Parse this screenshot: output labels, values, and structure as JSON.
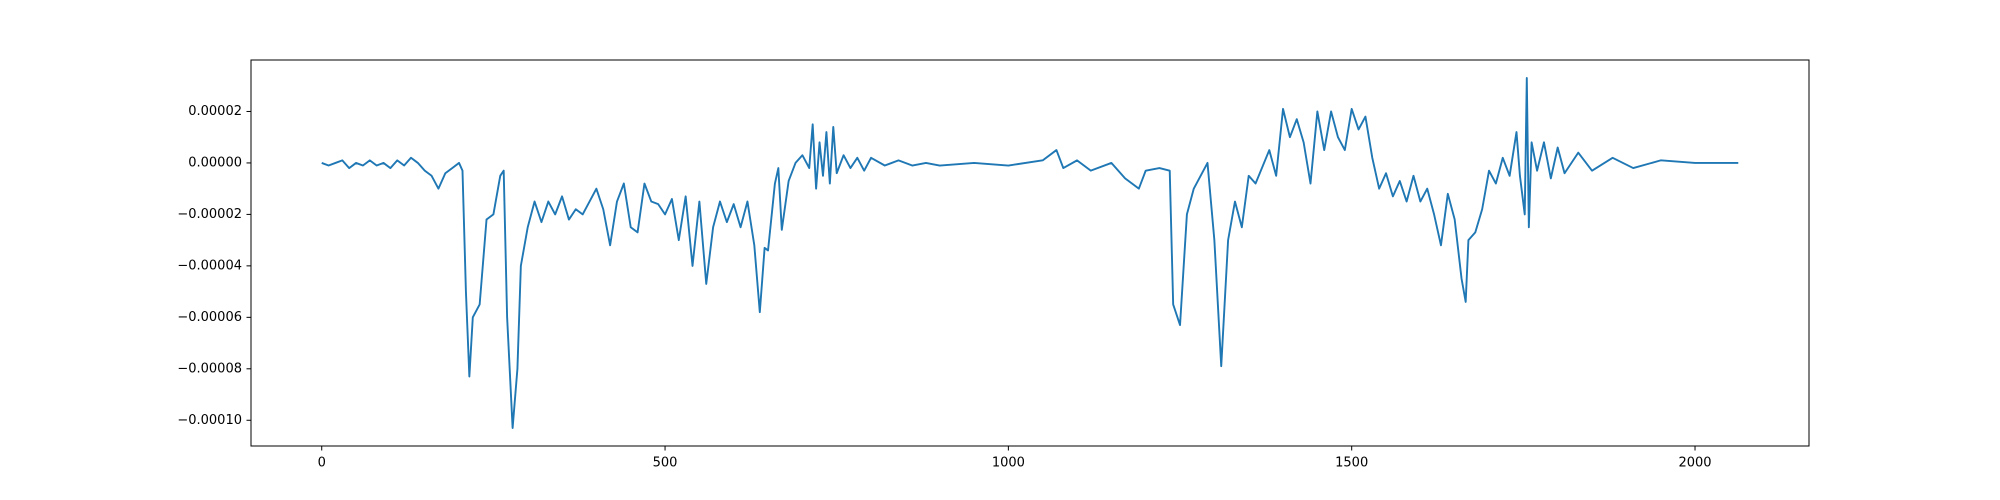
{
  "chart_data": {
    "type": "line",
    "x": [
      0,
      10,
      20,
      30,
      40,
      50,
      60,
      70,
      80,
      90,
      100,
      110,
      120,
      130,
      140,
      150,
      160,
      170,
      180,
      190,
      200,
      205,
      210,
      215,
      220,
      230,
      240,
      250,
      260,
      265,
      270,
      278,
      285,
      290,
      300,
      310,
      320,
      330,
      340,
      350,
      360,
      370,
      380,
      390,
      400,
      410,
      420,
      430,
      440,
      450,
      460,
      470,
      480,
      490,
      500,
      510,
      520,
      530,
      540,
      550,
      560,
      570,
      580,
      590,
      600,
      610,
      620,
      630,
      638,
      645,
      650,
      660,
      665,
      670,
      680,
      690,
      700,
      710,
      715,
      720,
      725,
      730,
      735,
      740,
      745,
      750,
      760,
      770,
      780,
      790,
      800,
      820,
      840,
      860,
      880,
      900,
      950,
      1000,
      1050,
      1070,
      1080,
      1100,
      1120,
      1150,
      1170,
      1190,
      1200,
      1220,
      1235,
      1240,
      1250,
      1260,
      1270,
      1280,
      1290,
      1300,
      1310,
      1320,
      1330,
      1340,
      1350,
      1360,
      1380,
      1390,
      1400,
      1410,
      1420,
      1430,
      1440,
      1450,
      1460,
      1470,
      1480,
      1490,
      1500,
      1510,
      1520,
      1530,
      1540,
      1550,
      1560,
      1570,
      1580,
      1590,
      1600,
      1610,
      1620,
      1630,
      1640,
      1650,
      1660,
      1666,
      1670,
      1680,
      1690,
      1700,
      1710,
      1720,
      1730,
      1740,
      1745,
      1752,
      1755,
      1758,
      1762,
      1770,
      1780,
      1790,
      1800,
      1810,
      1830,
      1850,
      1880,
      1910,
      1950,
      2000,
      2063
    ],
    "series": [
      {
        "color": "#1f77b4",
        "values": [
          0,
          -1e-06,
          0,
          1e-06,
          -2e-06,
          0,
          -1e-06,
          1e-06,
          -1e-06,
          0,
          -2e-06,
          1e-06,
          -1e-06,
          2e-06,
          0,
          -3e-06,
          -5e-06,
          -1e-05,
          -4e-06,
          -2e-06,
          0,
          -3e-06,
          -5e-05,
          -8.3e-05,
          -6e-05,
          -5.5e-05,
          -2.2e-05,
          -2e-05,
          -5e-06,
          -3e-06,
          -6e-05,
          -0.000103,
          -8e-05,
          -4e-05,
          -2.5e-05,
          -1.5e-05,
          -2.3e-05,
          -1.5e-05,
          -2e-05,
          -1.3e-05,
          -2.2e-05,
          -1.8e-05,
          -2e-05,
          -1.5e-05,
          -1e-05,
          -1.8e-05,
          -3.2e-05,
          -1.5e-05,
          -8e-06,
          -2.5e-05,
          -2.7e-05,
          -8e-06,
          -1.5e-05,
          -1.6e-05,
          -2e-05,
          -1.4e-05,
          -3e-05,
          -1.3e-05,
          -4e-05,
          -1.5e-05,
          -4.7e-05,
          -2.5e-05,
          -1.5e-05,
          -2.3e-05,
          -1.6e-05,
          -2.5e-05,
          -1.5e-05,
          -3.2e-05,
          -5.8e-05,
          -3.3e-05,
          -3.4e-05,
          -8e-06,
          -2e-06,
          -2.6e-05,
          -7e-06,
          0,
          3e-06,
          -2e-06,
          1.5e-05,
          -1e-05,
          8e-06,
          -5e-06,
          1.2e-05,
          -8e-06,
          1.4e-05,
          -4e-06,
          3e-06,
          -2e-06,
          2e-06,
          -3e-06,
          2e-06,
          -1e-06,
          1e-06,
          -1e-06,
          0,
          -1e-06,
          0,
          -1e-06,
          1e-06,
          5e-06,
          -2e-06,
          1e-06,
          -3e-06,
          0,
          -6e-06,
          -1e-05,
          -3e-06,
          -2e-06,
          -3e-06,
          -5.5e-05,
          -6.3e-05,
          -2e-05,
          -1e-05,
          -5e-06,
          0,
          -3e-05,
          -7.9e-05,
          -3e-05,
          -1.5e-05,
          -2.5e-05,
          -5e-06,
          -8e-06,
          5e-06,
          -5e-06,
          2.1e-05,
          1e-05,
          1.7e-05,
          8e-06,
          -8e-06,
          2e-05,
          5e-06,
          2e-05,
          1e-05,
          5e-06,
          2.1e-05,
          1.3e-05,
          1.8e-05,
          2e-06,
          -1e-05,
          -4e-06,
          -1.3e-05,
          -7e-06,
          -1.5e-05,
          -5e-06,
          -1.5e-05,
          -1e-05,
          -2e-05,
          -3.2e-05,
          -1.2e-05,
          -2.2e-05,
          -4.5e-05,
          -5.4e-05,
          -3e-05,
          -2.7e-05,
          -1.8e-05,
          -3e-06,
          -8e-06,
          2e-06,
          -5e-06,
          1.2e-05,
          -5e-06,
          -2e-05,
          3.3e-05,
          -2.5e-05,
          8e-06,
          -3e-06,
          8e-06,
          -6e-06,
          6e-06,
          -4e-06,
          4e-06,
          -3e-06,
          2e-06,
          -2e-06,
          1e-06,
          0,
          0
        ]
      }
    ],
    "xlim": [
      -103,
      2166
    ],
    "ylim": [
      -0.00011,
      4e-05
    ],
    "xticks": [
      0,
      500,
      1000,
      1500,
      2000
    ],
    "yticks": [
      {
        "value": -0.0001,
        "label": "−0.00010"
      },
      {
        "value": -8e-05,
        "label": "−0.00008"
      },
      {
        "value": -6e-05,
        "label": "−0.00006"
      },
      {
        "value": -4e-05,
        "label": "−0.00004"
      },
      {
        "value": -2e-05,
        "label": "−0.00002"
      },
      {
        "value": 0,
        "label": "0.00000"
      },
      {
        "value": 2e-05,
        "label": "0.00002"
      }
    ]
  }
}
